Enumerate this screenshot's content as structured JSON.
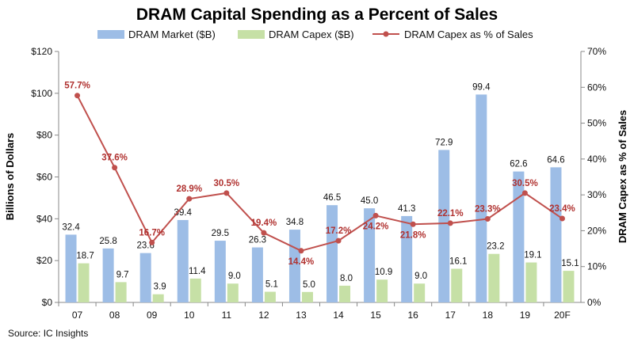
{
  "chart_data": {
    "type": "bar",
    "title": "DRAM Capital Spending as a Percent of Sales",
    "categories": [
      "07",
      "08",
      "09",
      "10",
      "11",
      "12",
      "13",
      "14",
      "15",
      "16",
      "17",
      "18",
      "19",
      "20F"
    ],
    "series": [
      {
        "name": "DRAM Market ($B)",
        "type": "bar",
        "axis": "left",
        "color": "#9dbde6",
        "values": [
          32.4,
          25.8,
          23.6,
          39.4,
          29.5,
          26.3,
          34.8,
          46.5,
          45.0,
          41.3,
          72.9,
          99.4,
          62.6,
          64.6
        ],
        "labels": [
          "32.4",
          "25.8",
          "23.6",
          "39.4",
          "29.5",
          "26.3",
          "34.8",
          "46.5",
          "45.0",
          "41.3",
          "72.9",
          "99.4",
          "62.6",
          "64.6"
        ]
      },
      {
        "name": "DRAM Capex ($B)",
        "type": "bar",
        "axis": "left",
        "color": "#c6e0a6",
        "values": [
          18.7,
          9.7,
          3.9,
          11.4,
          9.0,
          5.1,
          5.0,
          8.0,
          10.9,
          9.0,
          16.1,
          23.2,
          19.1,
          15.1
        ],
        "labels": [
          "18.7",
          "9.7",
          "3.9",
          "11.4",
          "9.0",
          "5.1",
          "5.0",
          "8.0",
          "10.9",
          "9.0",
          "16.1",
          "23.2",
          "19.1",
          "15.1"
        ]
      },
      {
        "name": "DRAM Capex as % of Sales",
        "type": "line",
        "axis": "right",
        "color": "#c0504d",
        "values": [
          57.7,
          37.6,
          16.7,
          28.9,
          30.5,
          19.4,
          14.4,
          17.2,
          24.2,
          21.8,
          22.1,
          23.3,
          30.5,
          23.4
        ],
        "labels": [
          "57.7%",
          "37.6%",
          "16.7%",
          "28.9%",
          "30.5%",
          "19.4%",
          "14.4%",
          "17.2%",
          "24.2%",
          "21.8%",
          "22.1%",
          "23.3%",
          "30.5%",
          "23.4%"
        ]
      }
    ],
    "ylabel": "Billions of Dollars",
    "y2label": "DRAM Capex as % of Sales",
    "ylim": [
      0,
      120
    ],
    "y2lim": [
      0,
      70
    ],
    "yticks": [
      "$0",
      "$20",
      "$40",
      "$60",
      "$80",
      "$100",
      "$120"
    ],
    "y2ticks": [
      "0%",
      "10%",
      "20%",
      "30%",
      "40%",
      "50%",
      "60%",
      "70%"
    ],
    "legend_position": "top",
    "grid": false,
    "source": "Source:  IC Insights"
  }
}
